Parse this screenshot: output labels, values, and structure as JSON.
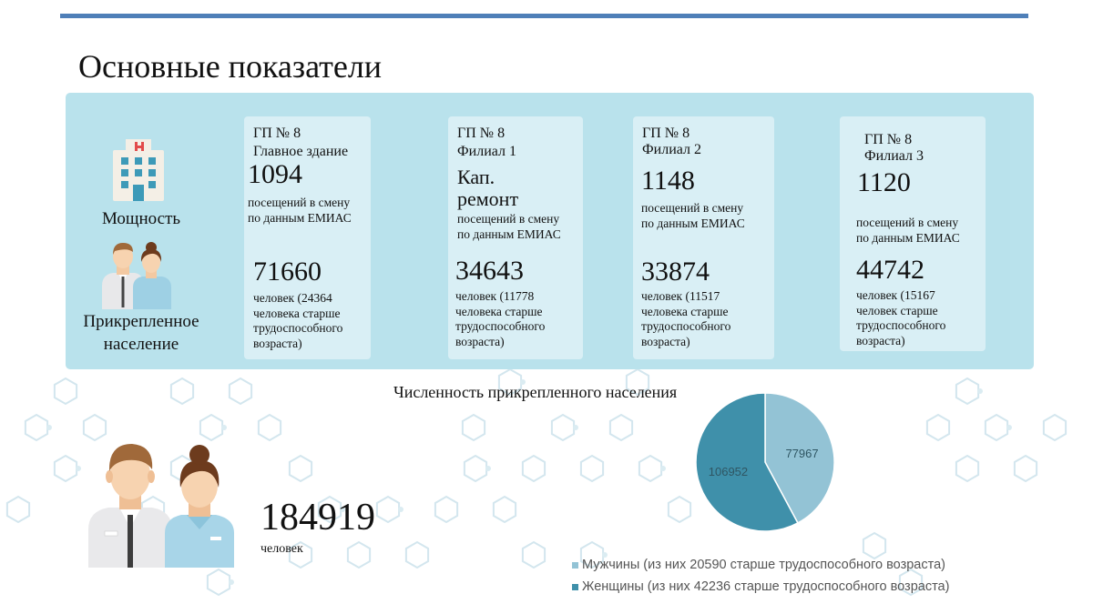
{
  "page": {
    "title": "Основные показатели"
  },
  "row_labels": {
    "capacity": "Мощность",
    "population_line1": "Прикрепленное",
    "population_line2": "население"
  },
  "icons": {
    "hospital": "hospital-icon",
    "people": "people-icon"
  },
  "colors": {
    "accent_rule": "#4f7fb8",
    "panel": "#b9e2ec",
    "card": "#d9eff5",
    "pie_men": "#93c3d5",
    "pie_women": "#3f90aa"
  },
  "cards": [
    {
      "name1": "ГП № 8",
      "name2": "Главное здание",
      "visits": "1094",
      "visits_note1": "посещений в смену",
      "visits_note2": "по данным ЕМИАС",
      "population": "71660",
      "pop_note1": "человек (24364",
      "pop_note2": "человека старше",
      "pop_note3": "трудоспособного",
      "pop_note4": "возраста)"
    },
    {
      "name1": "ГП № 8",
      "name2": "Филиал 1",
      "visits_line1": "Кап.",
      "visits_line2": "ремонт",
      "visits_note1": "посещений в смену",
      "visits_note2": "по данным ЕМИАС",
      "population": "34643",
      "pop_note1": "человек (11778",
      "pop_note2": "человека старше",
      "pop_note3": "трудоспособного",
      "pop_note4": "возраста)"
    },
    {
      "name1": "ГП № 8",
      "name2": "Филиал 2",
      "visits": "1148",
      "visits_note1": "посещений в смену",
      "visits_note2": "по данным ЕМИАС",
      "population": "33874",
      "pop_note1": "человек (11517",
      "pop_note2": "человека старше",
      "pop_note3": "трудоспособного",
      "pop_note4": "возраста)"
    },
    {
      "name1": "ГП № 8",
      "name2": "Филиал 3",
      "visits": "1120",
      "visits_note1": "посещений в смену",
      "visits_note2": "по данным ЕМИАС",
      "population": "44742",
      "pop_note1": "человек (15167",
      "pop_note2": "человек старше",
      "pop_note3": "трудоспособного",
      "pop_note4": "возраста)"
    }
  ],
  "total": {
    "value": "184919",
    "unit": "человек"
  },
  "chart_data": {
    "type": "pie",
    "title": "Численность прикрепленного населения",
    "categories": [
      "Мужчины (из них 20590 старше трудоспособного возраста)",
      "Женщины (из них 42236 старше трудоспособного возраста)"
    ],
    "values": [
      77967,
      106952
    ],
    "data_labels": [
      "77967",
      "106952"
    ],
    "colors": [
      "#93c3d5",
      "#3f90aa"
    ],
    "legend_position": "bottom"
  }
}
